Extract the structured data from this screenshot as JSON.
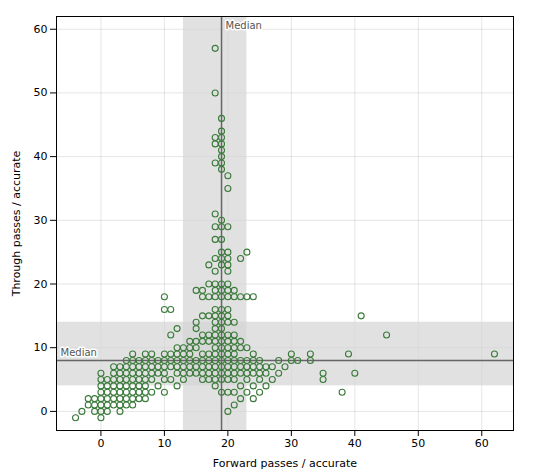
{
  "chart_data": {
    "type": "scatter",
    "xlabel": "Forward passes / accurate",
    "ylabel": "Through passes / accurate",
    "xlim": [
      -7,
      65
    ],
    "ylim": [
      -3,
      62
    ],
    "xticks": [
      0,
      10,
      20,
      30,
      40,
      50,
      60
    ],
    "yticks": [
      0,
      10,
      20,
      30,
      40,
      50,
      60
    ],
    "grid": true,
    "color": "#3a7a3a",
    "marker": "circle",
    "median_x": 19,
    "median_y": 8,
    "median_x_band": [
      13,
      23
    ],
    "median_y_band": [
      4,
      14
    ],
    "median_label_x": "Median",
    "median_label_y": "Median",
    "x": [
      -4,
      -3,
      -2,
      -2,
      -1,
      -1,
      -1,
      0,
      0,
      0,
      0,
      0,
      0,
      0,
      0,
      1,
      1,
      1,
      1,
      1,
      1,
      2,
      2,
      2,
      2,
      2,
      2,
      2,
      3,
      3,
      3,
      3,
      3,
      3,
      3,
      3,
      4,
      4,
      4,
      4,
      4,
      4,
      4,
      4,
      5,
      5,
      5,
      5,
      5,
      5,
      5,
      5,
      5,
      6,
      6,
      6,
      6,
      6,
      6,
      6,
      7,
      7,
      7,
      7,
      7,
      7,
      7,
      7,
      8,
      8,
      8,
      8,
      8,
      8,
      9,
      9,
      9,
      9,
      10,
      10,
      10,
      10,
      10,
      10,
      10,
      10,
      11,
      11,
      11,
      11,
      11,
      11,
      12,
      12,
      12,
      12,
      12,
      12,
      12,
      13,
      13,
      13,
      13,
      13,
      13,
      14,
      14,
      14,
      14,
      14,
      14,
      15,
      15,
      15,
      15,
      15,
      15,
      15,
      15,
      16,
      16,
      16,
      16,
      16,
      16,
      16,
      16,
      16,
      16,
      17,
      17,
      17,
      17,
      17,
      17,
      17,
      17,
      17,
      17,
      17,
      18,
      18,
      18,
      18,
      18,
      18,
      18,
      18,
      18,
      18,
      18,
      18,
      18,
      18,
      18,
      18,
      18,
      18,
      18,
      18,
      18,
      18,
      18,
      18,
      18,
      18,
      19,
      19,
      19,
      19,
      19,
      19,
      19,
      19,
      19,
      19,
      19,
      19,
      19,
      19,
      19,
      19,
      19,
      19,
      19,
      19,
      19,
      19,
      19,
      19,
      19,
      19,
      19,
      19,
      19,
      19,
      20,
      20,
      20,
      20,
      20,
      20,
      20,
      20,
      20,
      20,
      20,
      20,
      20,
      20,
      20,
      20,
      20,
      20,
      20,
      20,
      20,
      20,
      20,
      21,
      21,
      21,
      21,
      21,
      21,
      21,
      21,
      21,
      21,
      21,
      21,
      21,
      22,
      22,
      22,
      22,
      22,
      22,
      22,
      22,
      22,
      23,
      23,
      23,
      23,
      23,
      23,
      23,
      23,
      24,
      24,
      24,
      24,
      24,
      24,
      24,
      25,
      25,
      25,
      25,
      25,
      26,
      26,
      26,
      27,
      27,
      28,
      28,
      29,
      30,
      30,
      31,
      33,
      33,
      35,
      35,
      38,
      39,
      40,
      41,
      45,
      62
    ],
    "values": [
      -1,
      0,
      1,
      2,
      0,
      1,
      2,
      -1,
      0,
      1,
      2,
      3,
      4,
      5,
      6,
      0,
      1,
      2,
      3,
      4,
      5,
      1,
      2,
      3,
      4,
      5,
      6,
      7,
      0,
      1,
      2,
      3,
      4,
      5,
      6,
      7,
      1,
      2,
      3,
      4,
      5,
      6,
      7,
      8,
      1,
      2,
      3,
      4,
      5,
      6,
      7,
      8,
      9,
      2,
      3,
      4,
      5,
      6,
      7,
      8,
      2,
      3,
      4,
      5,
      6,
      7,
      8,
      9,
      3,
      5,
      6,
      7,
      8,
      9,
      4,
      6,
      7,
      8,
      3,
      5,
      6,
      7,
      8,
      9,
      16,
      18,
      5,
      7,
      8,
      9,
      12,
      16,
      4,
      6,
      7,
      8,
      9,
      10,
      13,
      5,
      6,
      7,
      8,
      9,
      10,
      6,
      7,
      8,
      9,
      10,
      11,
      6,
      7,
      8,
      10,
      11,
      13,
      14,
      19,
      5,
      6,
      7,
      8,
      9,
      11,
      12,
      15,
      18,
      19,
      5,
      6,
      7,
      8,
      9,
      11,
      12,
      15,
      18,
      20,
      23,
      4,
      5,
      6,
      7,
      8,
      9,
      10,
      11,
      12,
      13,
      14,
      15,
      16,
      18,
      19,
      20,
      22,
      24,
      27,
      29,
      31,
      39,
      42,
      43,
      50,
      57,
      3,
      5,
      6,
      7,
      8,
      9,
      10,
      11,
      12,
      13,
      14,
      15,
      16,
      18,
      19,
      20,
      23,
      24,
      25,
      27,
      29,
      30,
      38,
      39,
      40,
      41,
      42,
      43,
      44,
      46,
      0,
      3,
      5,
      6,
      7,
      8,
      9,
      10,
      11,
      12,
      14,
      15,
      16,
      18,
      19,
      20,
      22,
      23,
      24,
      25,
      29,
      35,
      37,
      1,
      3,
      5,
      6,
      7,
      8,
      9,
      10,
      11,
      12,
      14,
      18,
      19,
      2,
      4,
      6,
      7,
      8,
      10,
      11,
      18,
      24,
      3,
      5,
      6,
      7,
      8,
      10,
      18,
      25,
      2,
      4,
      6,
      7,
      8,
      9,
      18,
      3,
      5,
      6,
      7,
      8,
      4,
      6,
      7,
      5,
      7,
      6,
      8,
      7,
      8,
      9,
      8,
      8,
      9,
      5,
      6,
      3,
      9,
      6,
      15,
      12,
      9
    ]
  }
}
